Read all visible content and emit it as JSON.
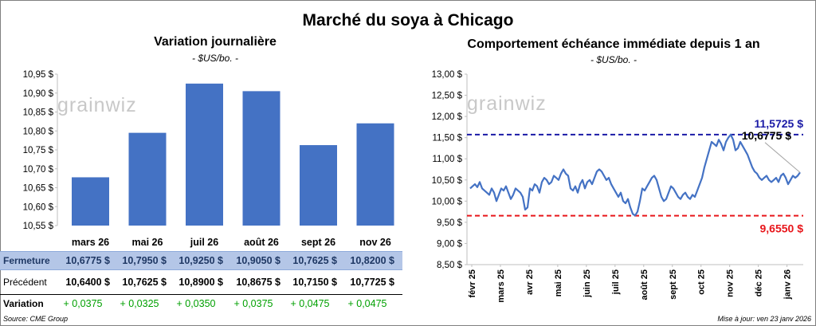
{
  "title": "Marché du soya à Chicago",
  "left_panel": {
    "title": "Variation journalière",
    "unit": "- $US/bo. -",
    "watermark": "grainwiz"
  },
  "right_panel": {
    "title": "Comportement échéance immédiate depuis 1 an",
    "unit": "- $US/bo. -",
    "watermark": "grainwiz"
  },
  "table": {
    "row_labels": [
      "Fermeture",
      "Précédent",
      "Variation"
    ],
    "fermeture": [
      "10,6775",
      "10,7950",
      "10,9250",
      "10,9050",
      "10,7625",
      "10,8200"
    ],
    "precedent": [
      "10,6400",
      "10,7625",
      "10,8900",
      "10,8675",
      "10,7150",
      "10,7725"
    ],
    "variation": [
      "+ 0,0375",
      "+ 0,0325",
      "+ 0,0350",
      "+ 0,0375",
      "+ 0,0475",
      "+ 0,0475"
    ],
    "currency": "$",
    "fermeture_bg": "#b4c6e7",
    "variation_color": "#00a000"
  },
  "footer": {
    "source": "Source: CME Group",
    "updated": "Mise à jour: ven 23 janv 2026"
  },
  "colors": {
    "bar": "#4472c4",
    "line": "#4472c4",
    "high": "#1a1aa6",
    "low": "#e8161b"
  },
  "chart_data": [
    {
      "type": "bar",
      "categories": [
        "mars 26",
        "mai 26",
        "juil 26",
        "août 26",
        "sept 26",
        "nov 26"
      ],
      "values": [
        10.6775,
        10.795,
        10.925,
        10.905,
        10.7625,
        10.82
      ],
      "ylim": [
        10.55,
        10.95
      ],
      "yticks": [
        "10,55 $",
        "10,60 $",
        "10,65 $",
        "10,70 $",
        "10,75 $",
        "10,80 $",
        "10,85 $",
        "10,90 $",
        "10,95 $"
      ],
      "grid": false
    },
    {
      "type": "line",
      "x_ticks": [
        "févr 25",
        "mars 25",
        "avr 25",
        "mai 25",
        "juin 25",
        "juil 25",
        "août 25",
        "sept 25",
        "oct 25",
        "nov 25",
        "déc 25",
        "janv 26"
      ],
      "ylim": [
        8.5,
        13.0
      ],
      "yticks": [
        "8,50 $",
        "9,00 $",
        "9,50 $",
        "10,00 $",
        "10,50 $",
        "11,00 $",
        "11,50 $",
        "12,00 $",
        "12,50 $",
        "13,00 $"
      ],
      "values": [
        10.3,
        10.35,
        10.4,
        10.33,
        10.45,
        10.3,
        10.25,
        10.2,
        10.15,
        10.3,
        10.2,
        10.0,
        10.15,
        10.3,
        10.25,
        10.35,
        10.2,
        10.05,
        10.15,
        10.3,
        10.25,
        10.2,
        10.1,
        9.8,
        9.85,
        10.3,
        10.25,
        10.4,
        10.35,
        10.2,
        10.45,
        10.55,
        10.5,
        10.4,
        10.45,
        10.6,
        10.55,
        10.5,
        10.65,
        10.75,
        10.65,
        10.6,
        10.3,
        10.25,
        10.35,
        10.2,
        10.4,
        10.5,
        10.3,
        10.45,
        10.5,
        10.4,
        10.55,
        10.7,
        10.75,
        10.7,
        10.6,
        10.5,
        10.55,
        10.4,
        10.3,
        10.2,
        10.1,
        10.2,
        10.0,
        9.95,
        10.05,
        9.85,
        9.7,
        9.66,
        9.75,
        10.0,
        10.3,
        10.25,
        10.35,
        10.45,
        10.55,
        10.6,
        10.5,
        10.3,
        10.1,
        10.0,
        10.05,
        10.2,
        10.35,
        10.3,
        10.2,
        10.1,
        10.05,
        10.15,
        10.2,
        10.1,
        10.05,
        10.15,
        10.1,
        10.25,
        10.4,
        10.55,
        10.8,
        11.0,
        11.2,
        11.4,
        11.35,
        11.3,
        11.45,
        11.35,
        11.2,
        11.4,
        11.5,
        11.57,
        11.45,
        11.2,
        11.25,
        11.4,
        11.3,
        11.2,
        11.1,
        10.95,
        10.8,
        10.7,
        10.65,
        10.55,
        10.5,
        10.55,
        10.6,
        10.5,
        10.45,
        10.5,
        10.55,
        10.45,
        10.6,
        10.65,
        10.55,
        10.4,
        10.5,
        10.6,
        10.55,
        10.6,
        10.68
      ],
      "annotations": {
        "high": "11,5725 $",
        "current": "10,6775 $",
        "low": "9,6550 $"
      },
      "high_line": 11.5725,
      "low_line": 9.655,
      "current": 10.6775,
      "grid": false
    }
  ]
}
